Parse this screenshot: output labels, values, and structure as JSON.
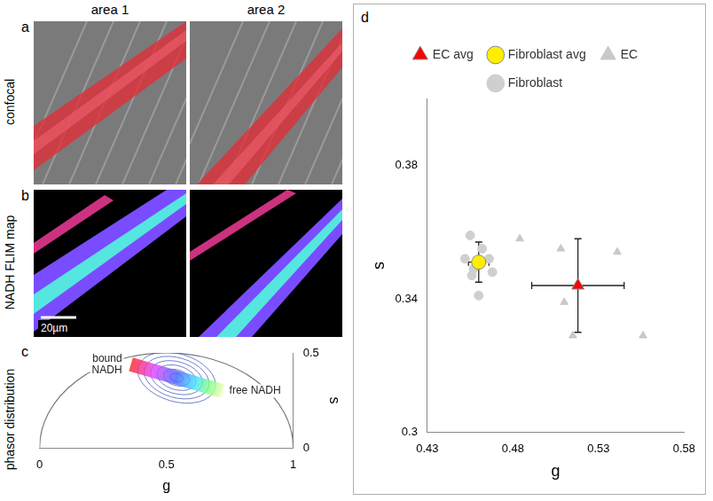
{
  "figure": {
    "panel_letters": [
      "a",
      "b",
      "c",
      "d"
    ],
    "columns": [
      "area 1",
      "area 2"
    ],
    "row_labels": [
      "confocal",
      "NADH FLIM map",
      "phasor distribution"
    ],
    "scale_bar": "20µm"
  },
  "chart_data": [
    {
      "type": "phasor",
      "xlabel": "g",
      "ylabel": "s",
      "xlim": [
        0,
        1
      ],
      "xticks": [
        0,
        0.5,
        1
      ],
      "ylim": [
        0,
        0.5
      ],
      "yticks": [
        0,
        0.5
      ],
      "grid": false,
      "annotations": [
        {
          "text": "bound NADH",
          "x": 0.36,
          "y": 0.44
        },
        {
          "text": "free NADH",
          "x": 0.72,
          "y": 0.3
        }
      ]
    },
    {
      "type": "scatter",
      "xlabel": "g",
      "ylabel": "s",
      "xlim": [
        0.43,
        0.58
      ],
      "xticks": [
        0.43,
        0.48,
        0.53,
        0.58
      ],
      "ylim": [
        0.3,
        0.4
      ],
      "yticks": [
        0.3,
        0.34,
        0.38
      ],
      "grid": false,
      "legend": "top",
      "series": [
        {
          "name": "EC",
          "color": "#c8c8c8",
          "marker": "triangle",
          "x": [
            0.484,
            0.508,
            0.51,
            0.515,
            0.541,
            0.556
          ],
          "y": [
            0.358,
            0.355,
            0.339,
            0.329,
            0.354,
            0.329
          ]
        },
        {
          "name": "EC avg",
          "color": "#ff0000",
          "marker": "triangle",
          "x": [
            0.518
          ],
          "y": [
            0.344
          ],
          "x_error": [
            0.027
          ],
          "y_error": [
            0.014
          ]
        },
        {
          "name": "Fibroblast",
          "color": "#cfcfcf",
          "marker": "circle",
          "x": [
            0.455,
            0.452,
            0.457,
            0.462,
            0.466,
            0.468,
            0.46,
            0.456
          ],
          "y": [
            0.359,
            0.352,
            0.349,
            0.355,
            0.352,
            0.348,
            0.341,
            0.347
          ]
        },
        {
          "name": "Fibroblast avg",
          "color": "#ffee00",
          "marker": "circle",
          "x": [
            0.46
          ],
          "y": [
            0.351
          ],
          "x_error": [
            0.006
          ],
          "y_error": [
            0.006
          ]
        }
      ]
    }
  ]
}
